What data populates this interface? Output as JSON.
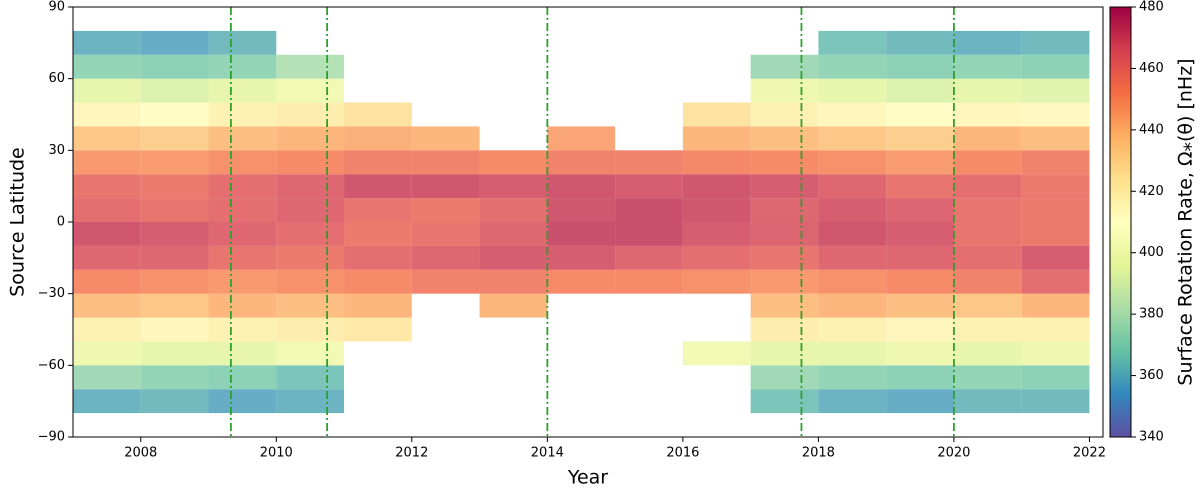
{
  "chart_data": {
    "type": "heatmap",
    "xlabel": "Year",
    "ylabel": "Source Latitude",
    "colorbar_label": "Surface Rotation Rate, Ω⁎(θ) [nHz]",
    "xbins": [
      2007,
      2008,
      2009,
      2010,
      2011,
      2012,
      2013,
      2014,
      2015,
      2016,
      2017,
      2018,
      2019,
      2020,
      2021,
      2022
    ],
    "ybins": [
      -90,
      -80,
      -70,
      -60,
      -50,
      -40,
      -30,
      -20,
      -10,
      0,
      10,
      20,
      30,
      40,
      50,
      60,
      70,
      80,
      90
    ],
    "z": [
      [
        null,
        null,
        null,
        null,
        null,
        null,
        null,
        null,
        null,
        null,
        null,
        null,
        null,
        null,
        null
      ],
      [
        360,
        362,
        358,
        360,
        null,
        null,
        null,
        null,
        null,
        null,
        365,
        360,
        358,
        362,
        362
      ],
      [
        375,
        372,
        370,
        365,
        null,
        null,
        null,
        null,
        null,
        null,
        375,
        372,
        370,
        372,
        370
      ],
      [
        398,
        395,
        395,
        400,
        null,
        null,
        null,
        null,
        null,
        400,
        395,
        395,
        398,
        395,
        398
      ],
      [
        418,
        415,
        418,
        420,
        422,
        null,
        null,
        null,
        null,
        null,
        420,
        418,
        415,
        418,
        418
      ],
      [
        438,
        435,
        440,
        438,
        440,
        null,
        440,
        null,
        null,
        null,
        438,
        440,
        438,
        435,
        440
      ],
      [
        452,
        450,
        448,
        450,
        452,
        455,
        455,
        452,
        452,
        450,
        448,
        450,
        452,
        455,
        462
      ],
      [
        465,
        465,
        460,
        458,
        462,
        465,
        468,
        468,
        465,
        462,
        460,
        465,
        465,
        462,
        468
      ],
      [
        470,
        468,
        465,
        462,
        458,
        460,
        465,
        472,
        472,
        468,
        466,
        470,
        468,
        460,
        458
      ],
      [
        462,
        460,
        462,
        465,
        460,
        458,
        462,
        470,
        472,
        470,
        465,
        468,
        466,
        460,
        458
      ],
      [
        460,
        458,
        462,
        465,
        470,
        470,
        468,
        470,
        468,
        470,
        468,
        465,
        460,
        462,
        458
      ],
      [
        448,
        447,
        450,
        452,
        455,
        455,
        452,
        455,
        455,
        453,
        452,
        450,
        447,
        452,
        455
      ],
      [
        435,
        432,
        438,
        440,
        442,
        440,
        null,
        445,
        null,
        440,
        438,
        435,
        432,
        440,
        438
      ],
      [
        415,
        412,
        418,
        420,
        425,
        null,
        null,
        null,
        null,
        425,
        418,
        415,
        412,
        415,
        414
      ],
      [
        395,
        392,
        395,
        400,
        null,
        null,
        null,
        null,
        null,
        null,
        398,
        395,
        392,
        395,
        393
      ],
      [
        372,
        370,
        372,
        380,
        null,
        null,
        null,
        null,
        null,
        null,
        375,
        372,
        370,
        372,
        370
      ],
      [
        360,
        358,
        362,
        null,
        null,
        null,
        null,
        null,
        null,
        null,
        null,
        365,
        362,
        360,
        362
      ],
      [
        null,
        null,
        null,
        null,
        null,
        null,
        null,
        null,
        null,
        null,
        null,
        null,
        null,
        null,
        null
      ]
    ],
    "xlim": [
      2007,
      2022.2
    ],
    "ylim": [
      -90,
      90
    ],
    "xticks": [
      2008,
      2010,
      2012,
      2014,
      2016,
      2018,
      2020,
      2022
    ],
    "yticks": [
      {
        "value": -90,
        "label": "−90"
      },
      {
        "value": -60,
        "label": "−60"
      },
      {
        "value": -30,
        "label": "−30"
      },
      0,
      30,
      60,
      90
    ],
    "clim": [
      340,
      480
    ],
    "cticks": [
      340,
      360,
      380,
      400,
      420,
      440,
      460,
      480
    ],
    "colormap": [
      "#5e4fa2",
      "#3288bd",
      "#66c2a5",
      "#abdda4",
      "#e6f598",
      "#ffffbf",
      "#fee08b",
      "#fdae61",
      "#f46d43",
      "#d53e4f",
      "#9e0142"
    ],
    "vlines": [
      2009.33,
      2010.75,
      2014.0,
      2017.75,
      2020.0
    ],
    "vline_color": "#2ca02c"
  }
}
